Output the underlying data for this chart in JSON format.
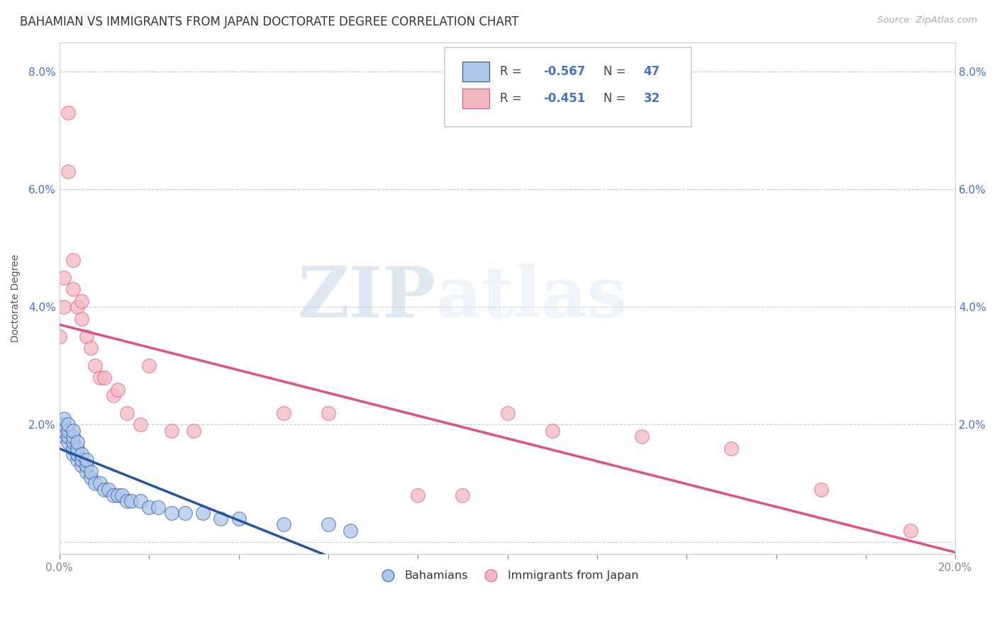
{
  "title": "BAHAMIAN VS IMMIGRANTS FROM JAPAN DOCTORATE DEGREE CORRELATION CHART",
  "source": "Source: ZipAtlas.com",
  "ylabel": "Doctorate Degree",
  "xlim": [
    0.0,
    0.2
  ],
  "ylim": [
    -0.002,
    0.085
  ],
  "xticks_major": [
    0.0,
    0.2
  ],
  "xticks_minor": [
    0.02,
    0.04,
    0.06,
    0.08,
    0.1,
    0.12,
    0.14,
    0.16,
    0.18
  ],
  "yticks": [
    0.02,
    0.04,
    0.06,
    0.08
  ],
  "yticks_right": [
    0.02,
    0.04,
    0.06,
    0.08
  ],
  "background_color": "#ffffff",
  "grid_color": "#cccccc",
  "blue_color": "#aec6e8",
  "blue_line_color": "#2255aa",
  "pink_color": "#f4b8c1",
  "pink_line_color": "#e05080",
  "r_blue": -0.567,
  "n_blue": 47,
  "r_pink": -0.451,
  "n_pink": 32,
  "blue_scatter_x": [
    0.0,
    0.0,
    0.001,
    0.001,
    0.001,
    0.001,
    0.002,
    0.002,
    0.002,
    0.002,
    0.003,
    0.003,
    0.003,
    0.003,
    0.003,
    0.004,
    0.004,
    0.004,
    0.004,
    0.005,
    0.005,
    0.005,
    0.006,
    0.006,
    0.006,
    0.007,
    0.007,
    0.008,
    0.009,
    0.01,
    0.011,
    0.012,
    0.013,
    0.014,
    0.015,
    0.016,
    0.018,
    0.02,
    0.022,
    0.025,
    0.028,
    0.032,
    0.036,
    0.04,
    0.05,
    0.06,
    0.065
  ],
  "blue_scatter_y": [
    0.019,
    0.02,
    0.018,
    0.019,
    0.02,
    0.021,
    0.017,
    0.018,
    0.019,
    0.02,
    0.015,
    0.016,
    0.017,
    0.018,
    0.019,
    0.014,
    0.015,
    0.016,
    0.017,
    0.013,
    0.014,
    0.015,
    0.012,
    0.013,
    0.014,
    0.011,
    0.012,
    0.01,
    0.01,
    0.009,
    0.009,
    0.008,
    0.008,
    0.008,
    0.007,
    0.007,
    0.007,
    0.006,
    0.006,
    0.005,
    0.005,
    0.005,
    0.004,
    0.004,
    0.003,
    0.003,
    0.002
  ],
  "pink_scatter_x": [
    0.0,
    0.001,
    0.001,
    0.002,
    0.002,
    0.003,
    0.003,
    0.004,
    0.005,
    0.005,
    0.006,
    0.007,
    0.008,
    0.009,
    0.01,
    0.012,
    0.013,
    0.015,
    0.018,
    0.02,
    0.025,
    0.03,
    0.05,
    0.06,
    0.08,
    0.09,
    0.1,
    0.11,
    0.13,
    0.15,
    0.17,
    0.19
  ],
  "pink_scatter_y": [
    0.035,
    0.04,
    0.045,
    0.063,
    0.073,
    0.043,
    0.048,
    0.04,
    0.038,
    0.041,
    0.035,
    0.033,
    0.03,
    0.028,
    0.028,
    0.025,
    0.026,
    0.022,
    0.02,
    0.03,
    0.019,
    0.019,
    0.022,
    0.022,
    0.008,
    0.008,
    0.022,
    0.019,
    0.018,
    0.016,
    0.009,
    0.002
  ],
  "blue_line_x": [
    0.0,
    0.07
  ],
  "pink_line_x": [
    0.0,
    0.2
  ],
  "watermark_zip": "ZIP",
  "watermark_atlas": "atlas",
  "title_fontsize": 12,
  "axis_label_fontsize": 10,
  "tick_fontsize": 11,
  "legend_fontsize": 12
}
